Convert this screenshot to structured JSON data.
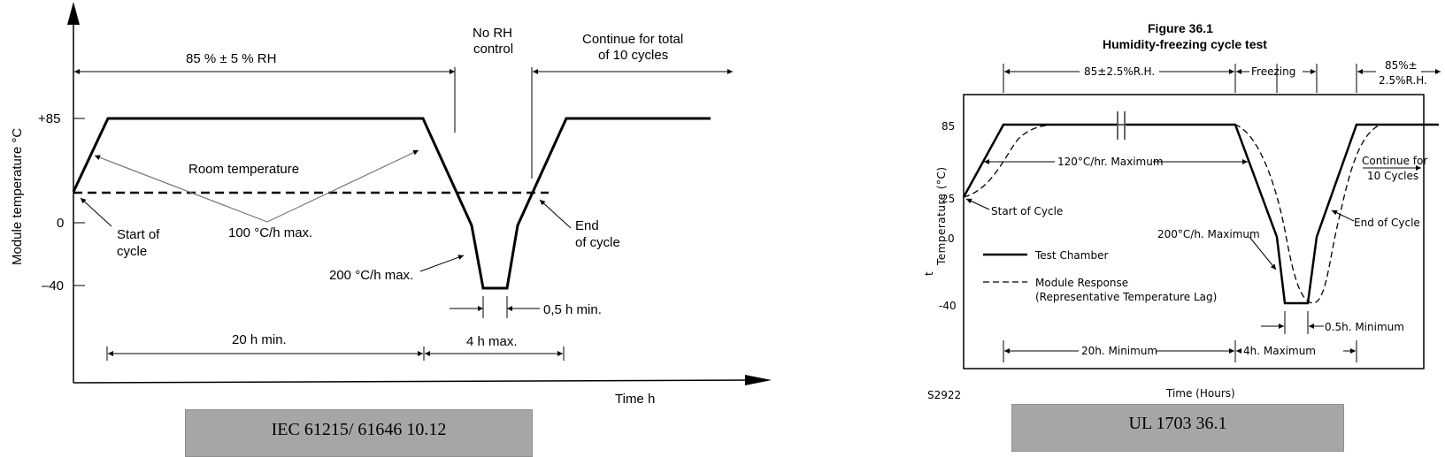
{
  "left": {
    "y_axis_label": "Module temperature  °C",
    "y_ticks": [
      "+85",
      "0",
      "–40"
    ],
    "x_axis_label": "Time   h",
    "rh_label": "85 % ± 5 % RH",
    "no_rh_1": "No RH",
    "no_rh_2": "control",
    "continue_1": "Continue for total",
    "continue_2": "of 10 cycles",
    "room_temp": "Room temperature",
    "rate_100": "100 °C/h max.",
    "start_1": "Start of",
    "start_2": "cycle",
    "end_1": "End",
    "end_2": "of cycle",
    "rate_200": "200 °C/h max.",
    "dwell": "0,5 h min.",
    "min_20h": "20 h min.",
    "max_4h": "4 h max.",
    "caption": "IEC 61215/ 61646 10.12"
  },
  "right": {
    "fig_title": "Figure 36.1",
    "fig_subtitle": "Humidity-freezing cycle test",
    "rh_label": "85±2.5%R.H.",
    "freezing": "Freezing",
    "rh2_1": "85%±",
    "rh2_2": "2.5%R.H.",
    "y_ticks": [
      "85",
      "25",
      "0",
      "-40"
    ],
    "y_label": "Temperature (°C)",
    "t_symbol": "t",
    "rate_120": "120°C/hr. Maximum",
    "rate_200": "200°C/h. Maximum",
    "start": "Start of Cycle",
    "end": "End of Cycle",
    "continue_1": "Continue for",
    "continue_2": "10 Cycles",
    "legend_chamber": "Test Chamber",
    "legend_module_1": "Module Response",
    "legend_module_2": "(Representative Temperature Lag)",
    "dwell": "0.5h. Minimum",
    "min_20h": "20h. Minimum",
    "max_4h": "4h. Maximum",
    "code": "S2922",
    "x_label": "Time (Hours)",
    "caption": "UL 1703 36.1"
  }
}
